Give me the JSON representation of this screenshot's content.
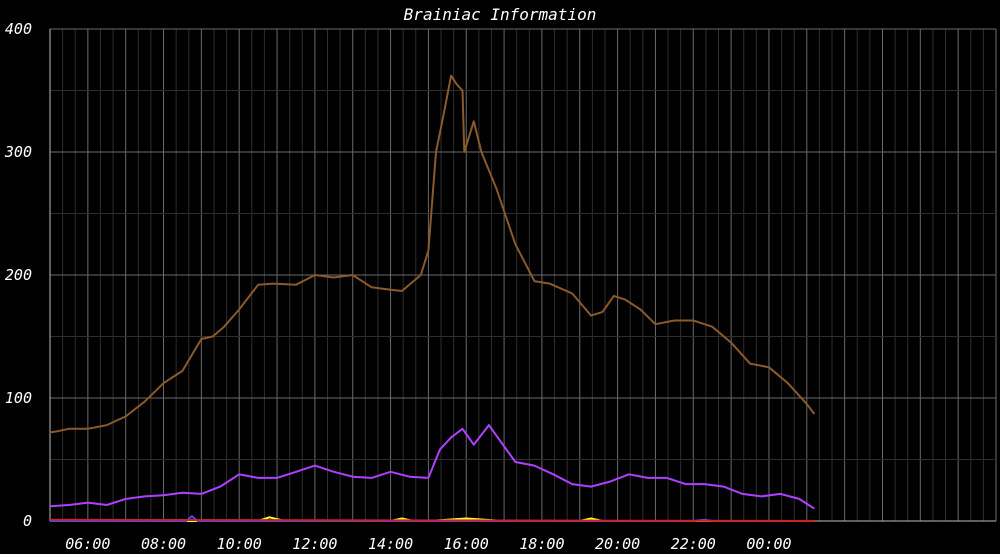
{
  "chart_data": {
    "type": "line",
    "title": "Brainiac Information",
    "xlabel": "",
    "ylabel": "",
    "background": "#000000",
    "ylim": [
      0,
      400
    ],
    "yticks": [
      0,
      100,
      200,
      300,
      400
    ],
    "xlim_hours": [
      5.0,
      30.0
    ],
    "xticks": [
      {
        "hour": 6,
        "label": "06:00"
      },
      {
        "hour": 8,
        "label": "08:00"
      },
      {
        "hour": 10,
        "label": "10:00"
      },
      {
        "hour": 12,
        "label": "12:00"
      },
      {
        "hour": 14,
        "label": "14:00"
      },
      {
        "hour": 16,
        "label": "16:00"
      },
      {
        "hour": 18,
        "label": "18:00"
      },
      {
        "hour": 20,
        "label": "20:00"
      },
      {
        "hour": 22,
        "label": "22:00"
      },
      {
        "hour": 24,
        "label": "00:00"
      }
    ],
    "grid": true,
    "legend": "none",
    "series": [
      {
        "color": "#8b5a2b",
        "x": [
          5.0,
          5.2,
          5.5,
          6.0,
          6.5,
          7.0,
          7.5,
          8.0,
          8.5,
          9.0,
          9.3,
          9.6,
          10.0,
          10.5,
          10.9,
          11.5,
          12.0,
          12.5,
          13.0,
          13.5,
          14.0,
          14.3,
          14.8,
          15.0,
          15.2,
          15.4,
          15.6,
          15.75,
          15.9,
          15.95,
          16.2,
          16.4,
          16.8,
          17.3,
          17.8,
          18.2,
          18.8,
          19.3,
          19.6,
          19.9,
          20.2,
          20.6,
          21.0,
          21.5,
          22.0,
          22.5,
          23.0,
          23.5,
          24.0,
          24.5,
          25.0,
          25.2
        ],
        "y": [
          72,
          73,
          75,
          75,
          78,
          85,
          97,
          112,
          122,
          148,
          150,
          158,
          172,
          192,
          193,
          192,
          200,
          198,
          200,
          190,
          188,
          187,
          200,
          220,
          300,
          330,
          362,
          355,
          350,
          300,
          325,
          300,
          270,
          225,
          195,
          193,
          185,
          167,
          170,
          183,
          180,
          172,
          160,
          163,
          163,
          158,
          145,
          128,
          125,
          112,
          95,
          87
        ]
      },
      {
        "color": "#b040ff",
        "x": [
          5.0,
          5.5,
          6.0,
          6.5,
          7.0,
          7.5,
          8.0,
          8.5,
          9.0,
          9.5,
          10.0,
          10.5,
          11.0,
          11.5,
          12.0,
          12.5,
          13.0,
          13.5,
          14.0,
          14.5,
          15.0,
          15.3,
          15.6,
          15.9,
          16.2,
          16.6,
          16.9,
          17.3,
          17.8,
          18.3,
          18.8,
          19.3,
          19.8,
          20.3,
          20.8,
          21.3,
          21.8,
          22.3,
          22.8,
          23.3,
          23.8,
          24.3,
          24.8,
          25.2
        ],
        "y": [
          12,
          13,
          15,
          13,
          18,
          20,
          21,
          23,
          22,
          28,
          38,
          35,
          35,
          40,
          45,
          40,
          36,
          35,
          40,
          36,
          35,
          58,
          68,
          75,
          62,
          78,
          65,
          48,
          45,
          38,
          30,
          28,
          32,
          38,
          35,
          35,
          30,
          30,
          28,
          22,
          20,
          22,
          18,
          10
        ]
      },
      {
        "color": "#ffff20",
        "x": [
          5.0,
          8.0,
          10.5,
          10.8,
          11.2,
          14.0,
          14.3,
          14.6,
          15.0,
          16.0,
          17.0,
          19.0,
          19.3,
          19.6,
          22.0,
          25.2
        ],
        "y": [
          0,
          0,
          0,
          3,
          0,
          0,
          2,
          0,
          0,
          2,
          0,
          0,
          2,
          0,
          0,
          0
        ]
      },
      {
        "color": "#4a4aff",
        "x": [
          5.0,
          8.6,
          8.75,
          8.9,
          15.5,
          22.0,
          22.3,
          22.5,
          25.2
        ],
        "y": [
          0,
          0,
          4,
          0,
          0,
          0,
          1,
          0,
          0
        ]
      },
      {
        "color": "#d02020",
        "x": [
          5.0,
          25.2
        ],
        "y": [
          1,
          0
        ]
      }
    ]
  }
}
